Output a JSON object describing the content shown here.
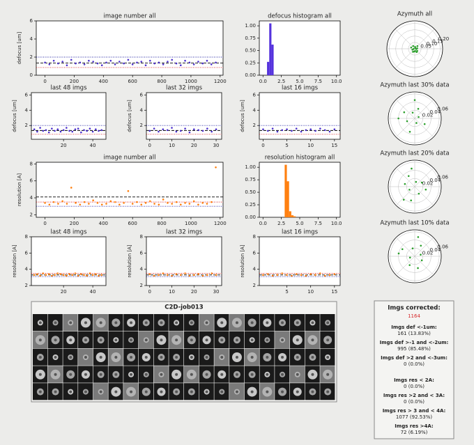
{
  "chart_data": [
    {
      "type": "scatter",
      "title": "image number all",
      "ylabel": "defocus [um]",
      "color": "#4b2fcc",
      "xlim": [
        -60,
        1220
      ],
      "ylim": [
        0,
        6
      ],
      "xticks": [
        0,
        200,
        400,
        600,
        800,
        1000,
        1200
      ],
      "yticks": [
        0,
        2,
        4,
        6
      ],
      "x": [
        0,
        30,
        60,
        90,
        120,
        150,
        180,
        210,
        240,
        270,
        300,
        330,
        360,
        390,
        420,
        450,
        480,
        510,
        540,
        570,
        600,
        630,
        660,
        690,
        720,
        750,
        780,
        810,
        840,
        870,
        900,
        930,
        960,
        990,
        1020,
        1050,
        1080,
        1110,
        1140,
        1170
      ],
      "values": [
        1.4,
        1.2,
        1.6,
        1.3,
        1.5,
        1.1,
        1.7,
        1.3,
        1.4,
        1.2,
        1.6,
        1.5,
        1.3,
        1.1,
        1.4,
        1.6,
        1.2,
        1.5,
        1.3,
        1.7,
        1.2,
        1.4,
        1.5,
        1.1,
        1.6,
        1.3,
        1.4,
        1.2,
        1.5,
        1.7,
        1.3,
        1.1,
        1.6,
        1.4,
        1.2,
        1.5,
        1.3,
        1.6,
        1.2,
        1.4
      ],
      "hlines": [
        {
          "value": 2.0,
          "color": "#1f1fa0",
          "style": "dotted"
        },
        {
          "value": 1.35,
          "color": "#000000",
          "style": "dashed"
        },
        {
          "value": 0.85,
          "color": "#d62728",
          "style": "dotted"
        }
      ]
    },
    {
      "type": "histogram",
      "title": "defocus histogram all",
      "color": "#5533dd",
      "xlim": [
        -0.5,
        10.5
      ],
      "ylim": [
        0,
        1.1
      ],
      "xticks": [
        {
          "value": 0,
          "label": "0.0"
        },
        2.5,
        {
          "value": 5,
          "label": "5.0"
        },
        7.5,
        {
          "value": 10,
          "label": "10.0"
        }
      ],
      "yticks": [
        {
          "value": 0,
          "label": "0.00"
        },
        0.25,
        {
          "value": 0.5,
          "label": "0.50"
        },
        0.75,
        {
          "value": 1,
          "label": "1.00"
        }
      ],
      "bins": [
        0.55,
        0.85,
        1.15,
        1.45
      ],
      "values": [
        0.27,
        1.05,
        0.62
      ]
    },
    {
      "type": "polar",
      "title": "Azymuth all",
      "color": "#2ca02c",
      "rlim": [
        0,
        0.22
      ],
      "rticks": [
        0.05,
        {
          "value": 0.1,
          "label": "0.10"
        },
        0.15,
        {
          "value": 0.2,
          "label": "0.20"
        }
      ],
      "theta": [
        10,
        45,
        80,
        120,
        160,
        200,
        240,
        280,
        320,
        350,
        60,
        190,
        260,
        300
      ],
      "values": [
        0.02,
        0.03,
        0.015,
        0.025,
        0.03,
        0.02,
        0.028,
        0.018,
        0.026,
        0.012,
        0.008,
        0.01,
        0.022,
        0.03
      ]
    },
    {
      "type": "scatter",
      "title": "last 48 imgs",
      "ylabel": "defocus [um]",
      "color": "#4b2fcc",
      "xlim": [
        -2,
        49
      ],
      "ylim": [
        0.2,
        6.3
      ],
      "xticks": [
        20,
        40
      ],
      "yticks": [
        2,
        4,
        6
      ],
      "x": [
        0,
        2,
        4,
        6,
        8,
        10,
        12,
        14,
        16,
        18,
        20,
        22,
        24,
        26,
        28,
        30,
        32,
        34,
        36,
        38,
        40,
        42,
        44,
        46
      ],
      "values": [
        1.5,
        1.2,
        1.7,
        1.3,
        1.4,
        1.1,
        1.6,
        1.3,
        1.5,
        1.2,
        1.4,
        1.7,
        1.3,
        1.2,
        1.5,
        1.6,
        1.1,
        1.4,
        1.3,
        1.6,
        1.2,
        1.5,
        1.3,
        1.4
      ],
      "hlines": [
        {
          "value": 2.0,
          "color": "#1f1fa0",
          "style": "dotted"
        },
        {
          "value": 1.35,
          "color": "#000000",
          "style": "dashed"
        },
        {
          "value": 0.85,
          "color": "#d62728",
          "style": "dotted"
        }
      ]
    },
    {
      "type": "scatter",
      "title": "last 32 imgs",
      "ylabel": "defocus [um]",
      "color": "#4b2fcc",
      "xlim": [
        -1.5,
        32.5
      ],
      "ylim": [
        0.2,
        6.3
      ],
      "xticks": [
        0,
        10,
        20,
        30
      ],
      "yticks": [
        2,
        4,
        6
      ],
      "x": [
        0,
        2,
        4,
        6,
        8,
        10,
        12,
        14,
        16,
        18,
        20,
        22,
        24,
        26,
        28,
        30
      ],
      "values": [
        1.3,
        1.6,
        1.2,
        1.5,
        1.4,
        1.7,
        1.2,
        1.3,
        1.6,
        1.1,
        1.5,
        1.4,
        1.3,
        1.6,
        1.2,
        1.5
      ],
      "hlines": [
        {
          "value": 2.0,
          "color": "#1f1fa0",
          "style": "dotted"
        },
        {
          "value": 1.35,
          "color": "#000000",
          "style": "dashed"
        },
        {
          "value": 0.85,
          "color": "#d62728",
          "style": "dotted"
        }
      ]
    },
    {
      "type": "scatter",
      "title": "last 16 imgs",
      "ylabel": "defocus [um]",
      "color": "#4b2fcc",
      "xlim": [
        -0.8,
        16.2
      ],
      "ylim": [
        0.2,
        6.3
      ],
      "xticks": [
        0,
        5,
        10,
        15
      ],
      "yticks": [
        2,
        4,
        6
      ],
      "x": [
        0,
        1,
        2,
        3,
        4,
        5,
        6,
        7,
        8,
        9,
        10,
        11,
        12,
        13,
        14,
        15
      ],
      "values": [
        1.5,
        1.3,
        1.6,
        1.2,
        1.4,
        1.5,
        1.3,
        1.6,
        1.2,
        1.4,
        1.5,
        1.3,
        1.6,
        1.4,
        1.2,
        1.5
      ],
      "hlines": [
        {
          "value": 2.0,
          "color": "#1f1fa0",
          "style": "dotted"
        },
        {
          "value": 1.35,
          "color": "#000000",
          "style": "dashed"
        },
        {
          "value": 0.85,
          "color": "#d62728",
          "style": "dotted"
        }
      ]
    },
    {
      "type": "polar",
      "title": "Azymuth last 30% data",
      "color": "#2ca02c",
      "rlim": [
        0,
        0.065
      ],
      "rticks": [
        0.02,
        0.04,
        0.06
      ],
      "theta": [
        20,
        70,
        110,
        150,
        200,
        250,
        290,
        330,
        90,
        180
      ],
      "values": [
        0.01,
        0.025,
        0.015,
        0.03,
        0.02,
        0.035,
        0.012,
        0.028,
        0.045,
        0.04
      ]
    },
    {
      "type": "scatter",
      "title": "image number all",
      "ylabel": "resolution [A]",
      "color": "#ff7f0e",
      "xlim": [
        -60,
        1220
      ],
      "ylim": [
        1.7,
        8.2
      ],
      "xticks": [
        0,
        200,
        400,
        600,
        800,
        1000,
        1200
      ],
      "yticks": [
        2,
        4,
        6,
        8
      ],
      "x": [
        0,
        30,
        60,
        90,
        120,
        150,
        180,
        210,
        240,
        270,
        300,
        330,
        360,
        390,
        420,
        450,
        480,
        510,
        540,
        570,
        600,
        630,
        660,
        690,
        720,
        750,
        780,
        810,
        840,
        870,
        900,
        930,
        960,
        990,
        1020,
        1050,
        1080,
        1110,
        1140,
        1170
      ],
      "values": [
        3.4,
        3.2,
        3.5,
        3.3,
        3.6,
        3.3,
        5.2,
        3.4,
        3.2,
        3.5,
        3.3,
        3.7,
        3.4,
        3.2,
        3.3,
        3.6,
        3.5,
        3.2,
        3.4,
        4.8,
        3.3,
        3.5,
        3.2,
        3.4,
        3.6,
        3.3,
        3.2,
        3.8,
        3.4,
        3.3,
        3.5,
        3.2,
        3.4,
        3.3,
        3.6,
        3.2,
        3.4,
        3.3,
        3.5,
        7.6
      ],
      "hlines": [
        {
          "value": 4.1,
          "color": "#000000",
          "style": "dashed"
        },
        {
          "value": 3.5,
          "color": "#d62728",
          "style": "dotted"
        },
        {
          "value": 3.0,
          "color": "#1f1fa0",
          "style": "dotted"
        }
      ]
    },
    {
      "type": "histogram",
      "title": "resolution histogram all",
      "color": "#ff7f0e",
      "xlim": [
        -0.5,
        10.5
      ],
      "ylim": [
        0,
        1.1
      ],
      "xticks": [
        {
          "value": 0,
          "label": "0.0"
        },
        2.5,
        {
          "value": 5,
          "label": "5.0"
        },
        7.5,
        {
          "value": 10,
          "label": "10.0"
        }
      ],
      "yticks": [
        {
          "value": 0,
          "label": "0.00"
        },
        0.25,
        {
          "value": 0.5,
          "label": "0.50"
        },
        0.75,
        {
          "value": 1,
          "label": "1.00"
        }
      ],
      "bins": [
        2.95,
        3.25,
        3.55,
        3.85,
        4.15,
        4.45
      ],
      "values": [
        1.05,
        0.72,
        0.12,
        0.04,
        0.02
      ]
    },
    {
      "type": "polar",
      "title": "Azymuth last 20% data",
      "color": "#2ca02c",
      "rlim": [
        0,
        0.065
      ],
      "rticks": [
        0.02,
        0.04,
        0.06
      ],
      "theta": [
        30,
        75,
        120,
        165,
        210,
        255,
        300,
        345,
        100,
        230
      ],
      "values": [
        0.02,
        0.012,
        0.03,
        0.025,
        0.015,
        0.035,
        0.02,
        0.028,
        0.045,
        0.042
      ]
    },
    {
      "type": "scatter",
      "title": "last 48 imgs",
      "ylabel": "resolution [A]",
      "color": "#ff7f0e",
      "xlim": [
        -2,
        49
      ],
      "ylim": [
        2,
        8
      ],
      "xticks": [
        20,
        40
      ],
      "yticks": [
        2,
        4,
        6,
        8
      ],
      "x": [
        0,
        2,
        4,
        6,
        8,
        10,
        12,
        14,
        16,
        18,
        20,
        22,
        24,
        26,
        28,
        30,
        32,
        34,
        36,
        38,
        40,
        42,
        44,
        46
      ],
      "values": [
        3.3,
        3.4,
        3.2,
        3.5,
        3.3,
        3.4,
        3.2,
        3.3,
        3.5,
        3.4,
        3.3,
        3.2,
        3.4,
        3.3,
        3.5,
        3.2,
        3.4,
        3.3,
        3.2,
        3.5,
        3.3,
        3.4,
        3.2,
        3.3
      ],
      "hlines": [
        {
          "value": 3.5,
          "color": "#d62728",
          "style": "dotted"
        },
        {
          "value": 3.3,
          "color": "#000000",
          "style": "dashed"
        },
        {
          "value": 3.1,
          "color": "#1f1fa0",
          "style": "dotted"
        }
      ]
    },
    {
      "type": "scatter",
      "title": "last 32 imgs",
      "ylabel": "resolution [A]",
      "color": "#ff7f0e",
      "xlim": [
        -1.5,
        32.5
      ],
      "ylim": [
        2,
        8
      ],
      "xticks": [
        0,
        10,
        20,
        30
      ],
      "yticks": [
        2,
        4,
        6,
        8
      ],
      "x": [
        0,
        2,
        4,
        6,
        8,
        10,
        12,
        14,
        16,
        18,
        20,
        22,
        24,
        26,
        28,
        30
      ],
      "values": [
        3.4,
        3.2,
        3.3,
        3.5,
        3.3,
        3.2,
        3.4,
        3.3,
        3.5,
        3.2,
        3.3,
        3.4,
        3.2,
        3.3,
        3.5,
        3.3
      ],
      "hlines": [
        {
          "value": 3.5,
          "color": "#d62728",
          "style": "dotted"
        },
        {
          "value": 3.3,
          "color": "#000000",
          "style": "dashed"
        },
        {
          "value": 3.1,
          "color": "#1f1fa0",
          "style": "dotted"
        }
      ]
    },
    {
      "type": "scatter",
      "title": "last 16 imgs",
      "ylabel": "resolution [A]",
      "color": "#ff7f0e",
      "xlim": [
        -0.8,
        16.2
      ],
      "ylim": [
        2,
        8
      ],
      "xticks": [
        5,
        10,
        15
      ],
      "yticks": [
        2,
        4,
        6,
        8
      ],
      "x": [
        0,
        1,
        2,
        3,
        4,
        5,
        6,
        7,
        8,
        9,
        10,
        11,
        12,
        13,
        14,
        15
      ],
      "values": [
        3.3,
        3.4,
        3.2,
        3.3,
        3.5,
        3.3,
        3.2,
        3.4,
        3.3,
        3.2,
        3.4,
        3.3,
        3.5,
        3.2,
        3.3,
        3.4
      ],
      "hlines": [
        {
          "value": 3.5,
          "color": "#d62728",
          "style": "dotted"
        },
        {
          "value": 3.3,
          "color": "#000000",
          "style": "dashed"
        },
        {
          "value": 3.1,
          "color": "#1f1fa0",
          "style": "dotted"
        }
      ]
    },
    {
      "type": "polar",
      "title": "Azymuth last 10% data",
      "color": "#2ca02c",
      "rlim": [
        0,
        0.065
      ],
      "rticks": [
        0.02,
        0.04,
        0.06
      ],
      "theta": [
        15,
        60,
        105,
        150,
        195,
        240,
        285,
        330,
        80,
        170
      ],
      "values": [
        0.015,
        0.03,
        0.02,
        0.035,
        0.012,
        0.025,
        0.03,
        0.02,
        0.048,
        0.04
      ]
    }
  ],
  "class_averages": {
    "title": "C2D-job013"
  },
  "stats": {
    "title": "Imgs corrected:",
    "total": "1164",
    "items": [
      {
        "label": "Imgs def <-1um:",
        "value": "161 (13.83%)"
      },
      {
        "label": "Imgs def >-1 and <-2um:",
        "value": "995 (85.48%)"
      },
      {
        "label": "Imgs def >2 and <-3um:",
        "value": "0 (0.0%)"
      },
      {
        "label": "Imgs res < 2A:",
        "value": "0 (0.0%)"
      },
      {
        "label": "Imgs res >2 and < 3A:",
        "value": "0 (0.0%)"
      },
      {
        "label": "Imgs res > 3 and < 4A:",
        "value": "1077 (92.53%)"
      },
      {
        "label": "Imgs res >4A:",
        "value": "72 (6.19%)"
      }
    ]
  }
}
